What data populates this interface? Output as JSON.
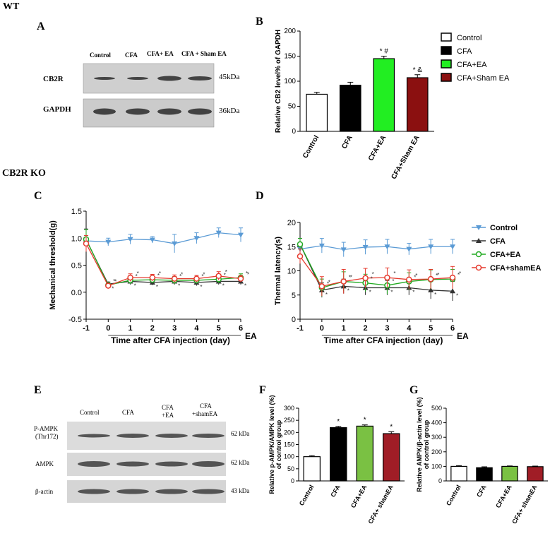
{
  "figure": {
    "wt_label": "WT",
    "ko_label": "CB2R KO",
    "panels": {
      "A": "A",
      "B": "B",
      "C": "C",
      "D": "D",
      "E": "E",
      "F": "F",
      "G": "G"
    }
  },
  "blot_A": {
    "lanes": [
      "Control",
      "CFA",
      "CFA+ EA",
      "CFA + Sham EA"
    ],
    "rows": [
      {
        "label": "CB2R",
        "size": "45kDa"
      },
      {
        "label": "GAPDH",
        "size": "36kDa"
      }
    ]
  },
  "blot_E": {
    "lanes": [
      "Control",
      "CFA",
      "CFA\n+EA",
      "CFA\n+shamEA"
    ],
    "rows": [
      {
        "label": "P-AMPK\n(Thr172)",
        "size": "62 kDa"
      },
      {
        "label": "AMPK",
        "size": "62 kDa"
      },
      {
        "label": "β-actin",
        "size": "43 kDa"
      }
    ]
  },
  "legend_B": {
    "items": [
      {
        "name": "Control",
        "color": "#ffffff"
      },
      {
        "name": "CFA",
        "color": "#000000"
      },
      {
        "name": "CFA+EA",
        "color": "#22ee22"
      },
      {
        "name": "CFA+Sham EA",
        "color": "#8b1010"
      }
    ]
  },
  "legend_CD": {
    "items": [
      {
        "name": "Control",
        "color": "#5b9bd5",
        "marker": "triangle-down"
      },
      {
        "name": "CFA",
        "color": "#333333",
        "marker": "triangle-up"
      },
      {
        "name": "CFA+EA",
        "color": "#22aa22",
        "marker": "circle"
      },
      {
        "name": "CFA+shamEA",
        "color": "#e63a2e",
        "marker": "circle"
      }
    ]
  },
  "chart_data": [
    {
      "panel": "B",
      "type": "bar",
      "categories": [
        "Control",
        "CFA",
        "CFA+EA",
        "CFA+Sham EA"
      ],
      "values": [
        74,
        92,
        145,
        107
      ],
      "errors": [
        4,
        6,
        5,
        6
      ],
      "annotations": [
        "",
        "",
        "* #",
        "* &"
      ],
      "colors": [
        "#ffffff",
        "#000000",
        "#22ee22",
        "#8b1010"
      ],
      "ylabel": "Relative CB2 level% of GAPDH",
      "ylim": [
        0,
        200
      ],
      "yticks": [
        0,
        50,
        100,
        150,
        200
      ]
    },
    {
      "panel": "C",
      "type": "line",
      "x": [
        -1,
        0,
        1,
        2,
        3,
        4,
        5,
        6
      ],
      "series": [
        {
          "name": "Control",
          "values": [
            0.95,
            0.93,
            0.98,
            0.97,
            0.9,
            1.0,
            1.1,
            1.06
          ],
          "errors": [
            0.1,
            0.07,
            0.09,
            0.06,
            0.17,
            0.1,
            0.09,
            0.13
          ]
        },
        {
          "name": "CFA",
          "values": [
            0.97,
            0.15,
            0.2,
            0.18,
            0.2,
            0.18,
            0.2,
            0.2
          ],
          "errors": [
            0.2,
            0.04,
            0.06,
            0.05,
            0.06,
            0.06,
            0.06,
            0.06
          ]
        },
        {
          "name": "CFA+EA",
          "values": [
            0.98,
            0.13,
            0.22,
            0.23,
            0.22,
            0.22,
            0.24,
            0.27
          ],
          "errors": [
            0.18,
            0.04,
            0.07,
            0.06,
            0.07,
            0.06,
            0.07,
            0.07
          ]
        },
        {
          "name": "CFA+shamEA",
          "values": [
            0.9,
            0.12,
            0.27,
            0.27,
            0.25,
            0.25,
            0.3,
            0.25
          ],
          "errors": [
            0.15,
            0.04,
            0.07,
            0.06,
            0.07,
            0.06,
            0.08,
            0.06
          ]
        }
      ],
      "xlabel": "Time after CFA injection (day)",
      "ea_label": "EA",
      "ylabel": "Mechanical threshold(g)",
      "xlim": [
        -1,
        6
      ],
      "ylim": [
        -0.5,
        1.5
      ],
      "yticks": [
        -0.5,
        0.0,
        0.5,
        1.0,
        1.5
      ]
    },
    {
      "panel": "D",
      "type": "line",
      "x": [
        -1,
        0,
        1,
        2,
        3,
        4,
        5,
        6
      ],
      "series": [
        {
          "name": "Control",
          "values": [
            14.5,
            15.2,
            14.4,
            14.9,
            15.0,
            14.5,
            15.0,
            15.0
          ],
          "errors": [
            1.0,
            1.5,
            1.5,
            1.5,
            1.5,
            1.2,
            1.5,
            1.5
          ]
        },
        {
          "name": "CFA",
          "values": [
            15.5,
            6.0,
            6.8,
            6.5,
            6.5,
            6.5,
            6.0,
            5.8
          ],
          "errors": [
            1.2,
            1.5,
            1.5,
            1.5,
            1.5,
            1.5,
            1.8,
            2.0
          ]
        },
        {
          "name": "CFA+EA",
          "values": [
            15.5,
            6.5,
            7.8,
            7.5,
            7.0,
            7.8,
            8.2,
            8.3
          ],
          "errors": [
            1.2,
            1.8,
            2.0,
            1.8,
            1.8,
            1.8,
            2.0,
            2.0
          ]
        },
        {
          "name": "CFA+shamEA",
          "values": [
            13.0,
            6.8,
            7.8,
            8.5,
            8.6,
            8.2,
            8.3,
            8.6
          ],
          "errors": [
            1.5,
            2.0,
            2.5,
            2.0,
            2.0,
            2.0,
            2.0,
            2.3
          ]
        }
      ],
      "xlabel": "Time after CFA injection (day)",
      "ea_label": "EA",
      "ylabel": "Thermal latency(s)",
      "xlim": [
        -1,
        6
      ],
      "ylim": [
        0,
        20
      ],
      "yticks": [
        0,
        5,
        10,
        15,
        20
      ]
    },
    {
      "panel": "F",
      "type": "bar",
      "categories": [
        "Control",
        "CFA",
        "CFA+EA",
        "CFA+ shamEA"
      ],
      "values": [
        100,
        220,
        226,
        195
      ],
      "errors": [
        4,
        5,
        5,
        8
      ],
      "annotations": [
        "",
        "*",
        "*",
        "*"
      ],
      "colors": [
        "#ffffff",
        "#000000",
        "#7ac143",
        "#a01d26"
      ],
      "ylabel": "Relative p-AMPK/AMPK level (%)\nof control group",
      "ylim": [
        0,
        300
      ],
      "yticks": [
        0,
        50,
        100,
        150,
        200,
        250,
        300
      ]
    },
    {
      "panel": "G",
      "type": "bar",
      "categories": [
        "Control",
        "CFA",
        "CFA+EA",
        "CFA+ shamEA"
      ],
      "values": [
        100,
        91,
        100,
        98
      ],
      "errors": [
        5,
        6,
        3,
        4
      ],
      "annotations": [
        "",
        "",
        "",
        ""
      ],
      "colors": [
        "#ffffff",
        "#000000",
        "#7ac143",
        "#a01d26"
      ],
      "ylabel": "Relative AMPK/β-actin level (%)\nof control group",
      "ylim": [
        0,
        500
      ],
      "yticks": [
        0,
        100,
        200,
        300,
        400,
        500
      ]
    }
  ]
}
